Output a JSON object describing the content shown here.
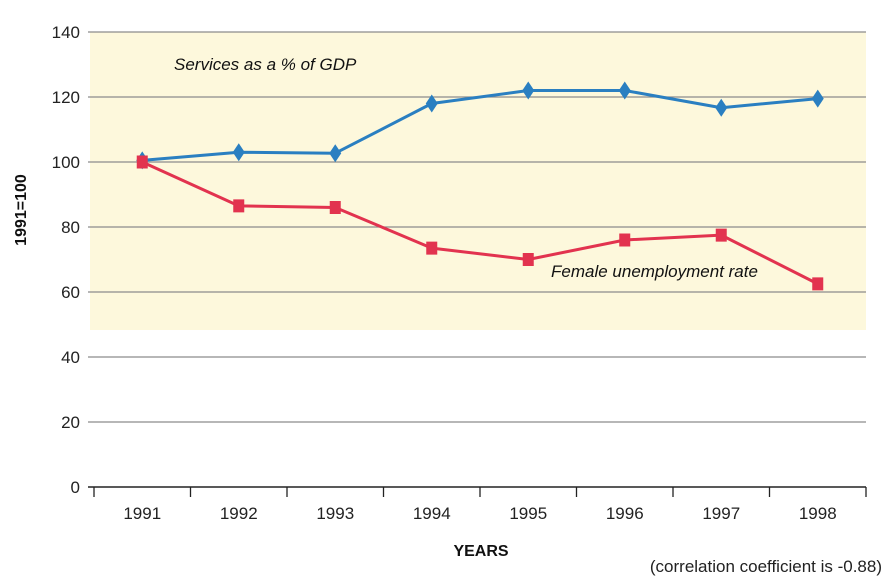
{
  "chart_data": {
    "type": "line",
    "categories": [
      "1991",
      "1992",
      "1993",
      "1994",
      "1995",
      "1996",
      "1997",
      "1998"
    ],
    "series": [
      {
        "name": "Services as a % of GDP",
        "values": [
          100.5,
          103,
          102.7,
          118,
          122,
          122,
          116.7,
          119.5
        ],
        "color": "#2a7fc1",
        "marker": "diamond"
      },
      {
        "name": "Female unemployment rate",
        "values": [
          100,
          86.5,
          86,
          73.5,
          70,
          76,
          77.5,
          62.5
        ],
        "color": "#e2334f",
        "marker": "square"
      }
    ],
    "xlabel": "YEARS",
    "ylabel": "1991=100",
    "ylim": [
      0,
      140
    ],
    "yticks": [
      "0",
      "20",
      "40",
      "60",
      "80",
      "100",
      "120",
      "140"
    ],
    "grid": true,
    "note": "(correlation coefficient is -0.88)"
  },
  "colors": {
    "plot_background": "#fdf8dc",
    "gridline": "#8c8c8c"
  }
}
